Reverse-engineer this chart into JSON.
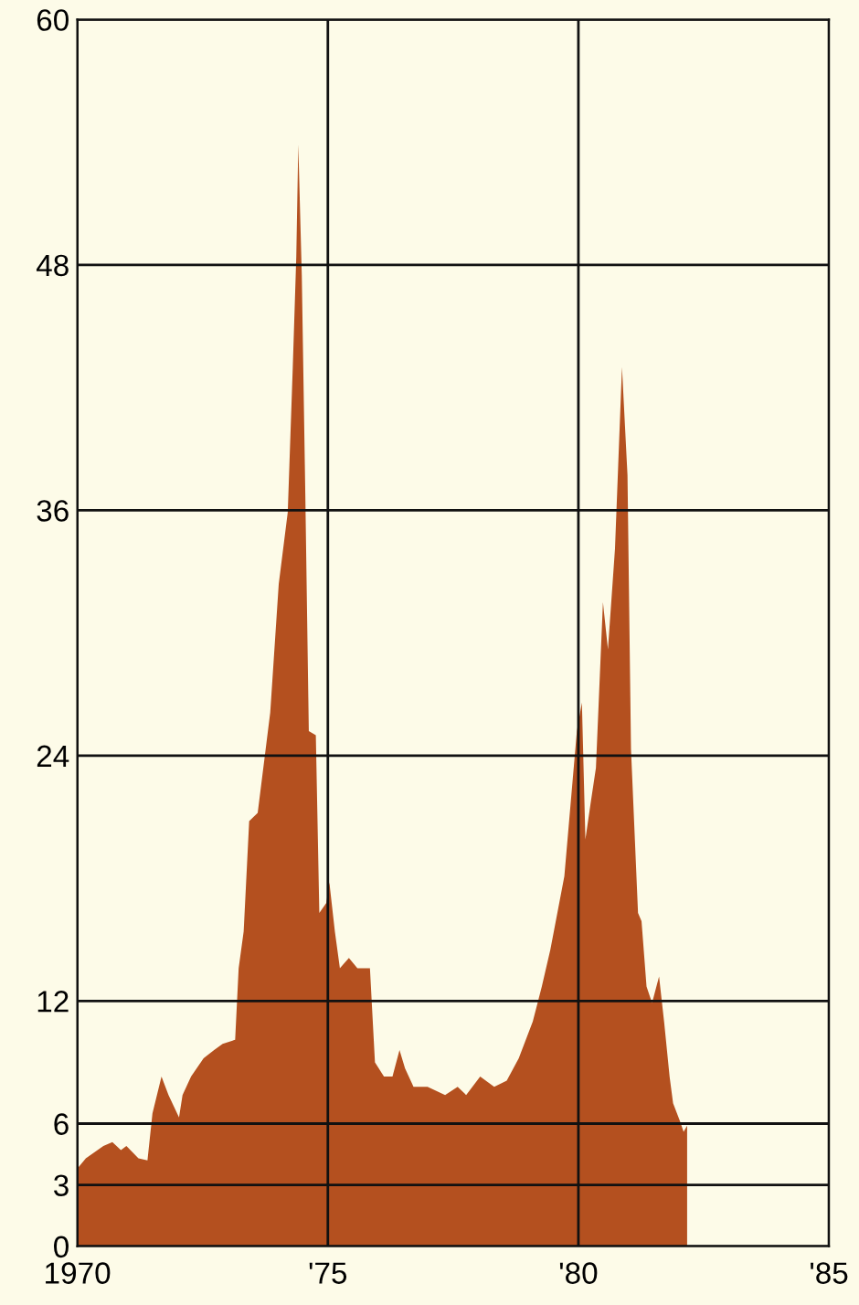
{
  "chart_data": {
    "type": "area",
    "x": [
      1970.0,
      1970.17,
      1970.52,
      1970.7,
      1970.87,
      1970.98,
      1971.22,
      1971.4,
      1971.5,
      1971.68,
      1971.82,
      1972.03,
      1972.1,
      1972.27,
      1972.52,
      1972.73,
      1972.9,
      1973.15,
      1973.22,
      1973.32,
      1973.43,
      1973.6,
      1973.85,
      1974.02,
      1974.2,
      1974.3,
      1974.37,
      1974.41,
      1974.48,
      1974.55,
      1974.62,
      1974.76,
      1974.83,
      1974.97,
      1975.03,
      1975.14,
      1975.24,
      1975.42,
      1975.59,
      1975.84,
      1975.94,
      1976.12,
      1976.29,
      1976.43,
      1976.54,
      1976.71,
      1976.99,
      1977.34,
      1977.59,
      1977.76,
      1978.04,
      1978.32,
      1978.57,
      1978.81,
      1979.09,
      1979.27,
      1979.44,
      1979.72,
      1979.97,
      1980.07,
      1980.14,
      1980.24,
      1980.35,
      1980.49,
      1980.59,
      1980.73,
      1980.87,
      1980.98,
      1981.05,
      1981.19,
      1981.26,
      1981.36,
      1981.47,
      1981.61,
      1981.71,
      1981.82,
      1981.89,
      1982.03,
      1982.1,
      1982.17
    ],
    "series": [
      {
        "color": "#b4501f",
        "values": [
          3.8,
          4.3,
          4.9,
          5.1,
          4.7,
          4.9,
          4.3,
          4.2,
          6.5,
          8.3,
          7.4,
          6.3,
          7.4,
          8.3,
          9.2,
          9.6,
          9.9,
          10.1,
          13.6,
          15.4,
          20.8,
          21.2,
          26.1,
          32.4,
          35.9,
          43.0,
          48.4,
          53.9,
          47.5,
          36.8,
          25.2,
          25.0,
          16.3,
          16.8,
          17.8,
          15.4,
          13.6,
          14.1,
          13.6,
          13.6,
          9.0,
          8.3,
          8.3,
          9.6,
          8.7,
          7.8,
          7.8,
          7.4,
          7.8,
          7.4,
          8.3,
          7.8,
          8.1,
          9.2,
          11.0,
          12.7,
          14.5,
          18.1,
          25.2,
          26.6,
          19.9,
          21.6,
          23.4,
          31.5,
          29.2,
          34.1,
          43.0,
          37.7,
          24.3,
          16.3,
          15.9,
          12.7,
          11.9,
          13.2,
          11.0,
          8.3,
          7.0,
          6.1,
          5.6,
          5.9
        ]
      }
    ],
    "xlim": [
      1970,
      1985
    ],
    "xticks": [
      1970,
      {
        "value": 1975,
        "label": "'75"
      },
      {
        "value": 1980,
        "label": "'80"
      },
      {
        "value": 1985,
        "label": "'85"
      }
    ],
    "ylim": [
      0,
      60
    ],
    "yticks": [
      0,
      3,
      6,
      12,
      24,
      36,
      48,
      60
    ],
    "grid": true
  }
}
